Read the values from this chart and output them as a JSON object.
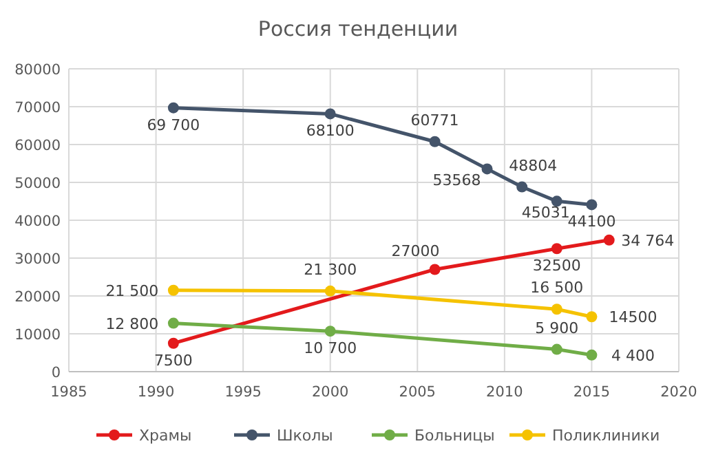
{
  "chart_data": {
    "type": "line",
    "title": "Россия тенденции",
    "xlim": [
      1985,
      2020
    ],
    "xticks": [
      1985,
      1990,
      1995,
      2000,
      2005,
      2010,
      2015,
      2020
    ],
    "ylim": [
      0,
      80000
    ],
    "yticks": [
      0,
      10000,
      20000,
      30000,
      40000,
      50000,
      60000,
      70000,
      80000
    ],
    "grid": true,
    "legend": "bottom",
    "marker": "circle",
    "line_style": "solid",
    "series": [
      {
        "name": "Храмы",
        "color": "#e31a1c",
        "x": [
          1991,
          2006,
          2013,
          2016
        ],
        "values": [
          7500,
          27000,
          32500,
          34764
        ],
        "value_labels": [
          "7500",
          "27000",
          "32500",
          "34 764"
        ]
      },
      {
        "name": "Школы",
        "color": "#44546a",
        "x": [
          1991,
          2000,
          2006,
          2009,
          2011,
          2013,
          2015
        ],
        "values": [
          69700,
          68100,
          60771,
          53568,
          48804,
          45031,
          44100
        ],
        "value_labels": [
          "69 700",
          "68100",
          "60771",
          "53568",
          "48804",
          "45031",
          "44100"
        ]
      },
      {
        "name": "Больницы",
        "color": "#70ad47",
        "x": [
          1991,
          2000,
          2013,
          2015
        ],
        "values": [
          12800,
          10700,
          5900,
          4400
        ],
        "value_labels": [
          "12 800",
          "10 700",
          "5 900",
          "4 400"
        ]
      },
      {
        "name": "Поликлиники",
        "color": "#f5c200",
        "x": [
          1991,
          2000,
          2013,
          2015
        ],
        "values": [
          21500,
          21300,
          16500,
          14500
        ],
        "value_labels": [
          "21 500",
          "21 300",
          "16 500",
          "14500"
        ]
      }
    ]
  }
}
